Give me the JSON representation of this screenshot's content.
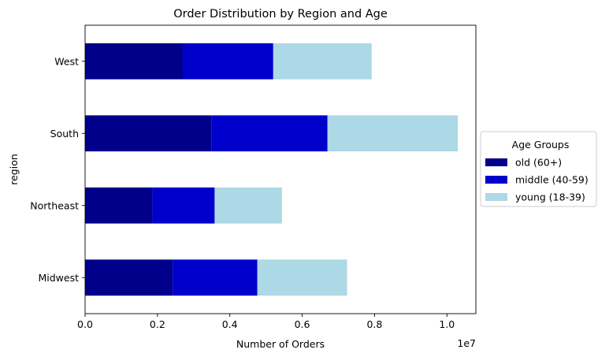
{
  "chart_data": {
    "type": "bar",
    "orientation": "horizontal",
    "stacked": true,
    "title": "Order Distribution by Region and Age",
    "xlabel": "Number of Orders",
    "ylabel": "region",
    "x_offset_label": "1e7",
    "xlim": [
      0,
      10800000
    ],
    "x_ticks": [
      0,
      2000000,
      4000000,
      6000000,
      8000000,
      10000000
    ],
    "x_tick_labels": [
      "0.0",
      "0.2",
      "0.4",
      "0.6",
      "0.8",
      "1.0"
    ],
    "categories": [
      "Midwest",
      "Northeast",
      "South",
      "West"
    ],
    "series": [
      {
        "name": "old (60+)",
        "color": "#00008b",
        "values": [
          2420000,
          1860000,
          3500000,
          2700000
        ]
      },
      {
        "name": "middle (40-59)",
        "color": "#0000cd",
        "values": [
          2340000,
          1720000,
          3200000,
          2500000
        ]
      },
      {
        "name": "young (18-39)",
        "color": "#add8e6",
        "values": [
          2480000,
          1860000,
          3600000,
          2720000
        ]
      }
    ],
    "legend": {
      "title": "Age Groups",
      "placement": "center-right outside"
    },
    "grid": false
  }
}
